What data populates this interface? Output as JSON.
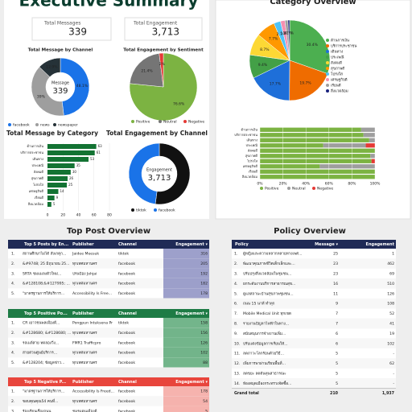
{
  "header": {
    "title": "Executive Summary"
  },
  "sections": [
    "Top Post Overview",
    "Policy Overview"
  ],
  "cards": [
    {
      "label": "Total Messages",
      "value": "339"
    },
    {
      "label": "Total Engagement",
      "value": "3,713"
    }
  ],
  "chart_data": [
    {
      "type": "donut",
      "title": "Total Message by Channel",
      "center_label": "Message",
      "center_value": "339",
      "categories": [
        "facebook",
        "news",
        "newspaper"
      ],
      "values": [
        48.1,
        39,
        12.9
      ],
      "value_labels": [
        "48.1%",
        "39%",
        "12.9%"
      ],
      "colors": [
        "#1a73e8",
        "#9e9e9e",
        "#263238"
      ]
    },
    {
      "type": "pie",
      "title": "Total Engagement by Sentiment",
      "categories": [
        "Positive",
        "Neutral",
        "Negative"
      ],
      "values": [
        76.6,
        21.4,
        2
      ],
      "value_labels": [
        "76.6%",
        "21.4%",
        "2%"
      ],
      "colors": [
        "#7cb342",
        "#757575",
        "#e53935"
      ]
    },
    {
      "type": "hbar",
      "title": "Total Message by Category",
      "categories": [
        "ด้านการเงิน",
        "บริการประชาชน",
        "เดินทาง",
        "ประเพณี",
        "สังคมดี",
        "สุขภาพดี",
        "โปร่งใส",
        "เศรษฐกิจดี",
        "เรียนดี",
        "สิ่งแวดล้อม"
      ],
      "values": [
        63,
        61,
        53,
        35,
        30,
        26,
        25,
        14,
        9,
        5
      ],
      "color": "#137333",
      "xlim": [
        0,
        80
      ],
      "xticks": [
        0,
        20,
        40,
        60,
        80
      ]
    },
    {
      "type": "donut",
      "title": "Total Engagement by Channel",
      "center_label": "Engagement",
      "center_value": "3,713",
      "categories": [
        "tiktok",
        "facebook"
      ],
      "values": [
        52.1,
        47.9
      ],
      "colors": [
        "#111111",
        "#1a73e8"
      ]
    },
    {
      "type": "pie",
      "title": "Category Overview",
      "categories": [
        "ด้านการเงิน",
        "บริการประชาชน",
        "เดินทาง",
        "ประเพณี",
        "สังคมดี",
        "สุขภาพดี",
        "โปร่งใส",
        "เศรษฐกิจดี",
        "เรียนดี",
        "สิ่งแวดล้อม"
      ],
      "values": [
        30.4,
        19.7,
        17.7,
        9.4,
        8.7,
        7.7,
        2.7,
        1.8,
        1.2,
        0.7
      ],
      "value_labels": [
        "30.4%",
        "19.7%",
        "17.7%",
        "9.4%",
        "8.7%",
        "7.7%",
        "2.7%",
        "1.8%",
        "1.2%",
        "0.7%"
      ],
      "colors": [
        "#4caf50",
        "#ef6c00",
        "#1e6fd9",
        "#43a047",
        "#fdd835",
        "#ff9800",
        "#4fc3f7",
        "#f48fb1",
        "#9e9e9e",
        "#1a237e"
      ],
      "legend": "right"
    },
    {
      "type": "stacked_hbar",
      "categories": [
        "ด้านการเงิน",
        "บริการประชาชน",
        "เดินทาง",
        "ประเพณี",
        "สังคมดี",
        "สุขภาพดี",
        "โปร่งใส",
        "เศรษฐกิจดี",
        "เรียนดี",
        "สิ่งแวดล้อม"
      ],
      "series": [
        {
          "name": "Positive",
          "color": "#7cb342",
          "values": [
            88,
            90,
            95,
            55,
            100,
            96,
            97,
            52,
            100,
            100
          ]
        },
        {
          "name": "Neutral",
          "color": "#9e9e9e",
          "values": [
            12,
            10,
            5,
            37,
            0,
            4,
            0,
            48,
            0,
            0
          ]
        },
        {
          "name": "Negative",
          "color": "#e53935",
          "values": [
            0,
            0,
            0,
            8,
            0,
            0,
            3,
            0,
            0,
            0
          ]
        }
      ],
      "xlim": [
        0,
        100
      ],
      "xticks": [
        {
          "value": 0,
          "label": "0%"
        },
        {
          "value": 20,
          "label": "20%"
        },
        {
          "value": 40,
          "label": "40%"
        },
        {
          "value": 60,
          "label": "60%"
        },
        {
          "value": 80,
          "label": "80%"
        },
        {
          "value": 100,
          "label": "100%"
        }
      ],
      "grid": true
    }
  ],
  "tables": [
    {
      "header_color": "#1f2a56",
      "cell_color": "#8c8fc2",
      "header": [
        "Top 5 Posts by En...",
        "Publisher",
        "Channel",
        "Engagement ▾"
      ],
      "rows": [
        [
          "1.",
          "สถานศึกษาไม่ได้ สังเกตุก...",
          "Jaidee Meesuk",
          "tiktok",
          "316"
        ],
        [
          "2.",
          "&#9748; 25 มิถุนายน 25...",
          "ทุกเทศมหานคร",
          "facebook",
          "205"
        ],
        [
          "3.",
          "SRTA ชมแมลงตัวใหม่...",
          "ปรนป้อง Johjai",
          "facebook",
          "192"
        ],
        [
          "4.",
          "&#128108;&#127995; ...",
          "ทุกเทศมหานคร",
          "facebook",
          "182"
        ],
        [
          "5.",
          "\"มาตรฐานการให้บริการ...",
          "Accessibility Is Free...",
          "facebook",
          "178"
        ]
      ]
    },
    {
      "header_color": "#1e7b45",
      "cell_color": "#5aa877",
      "header": [
        "Top 5 Positive Po...",
        "Publisher",
        "Channel",
        "Engagement ▾"
      ],
      "rows": [
        [
          "1.",
          "CR เยาวชนพลเมืองดี...",
          "Pongpun Intuksena Pr",
          "tiktok",
          "158"
        ],
        [
          "2.",
          "&#128680; &#128680; ...",
          "ทุกเทศมหานคร",
          "facebook",
          "156"
        ],
        [
          "3.",
          "รถเมล์สาย ทดลองวิ่ง...",
          "FMR1 Trafficpro",
          "facebook",
          "126"
        ],
        [
          "4.",
          "สายด่วนศูนย์บริการ...",
          "ทุกเทศมหานคร",
          "facebook",
          "102"
        ],
        [
          "5.",
          "&#128204; ข้อมูลข่าว...",
          "ทุกเทศมหานคร",
          "facebook",
          "88"
        ]
      ]
    },
    {
      "header_color": "#e8453c",
      "cell_color": "#f4a6a0",
      "header": [
        "Top 5 Negative P...",
        "Publisher",
        "Channel",
        "Engagement ▾"
      ],
      "rows": [
        [
          "1.",
          "\"มาตรฐานการให้บริการ...",
          "Accessibility Is Freed...",
          "facebook",
          "178"
        ],
        [
          "2.",
          "ขอบคุณคุณ54 คนที่...",
          "ทุกเทศมหานคร",
          "facebook",
          "54"
        ],
        [
          "3.",
          "ร้องเรียนเรื่องถนน...",
          "ชมรมคนเมืองดี",
          "facebook",
          "5"
        ]
      ]
    },
    {
      "header_color": "#1f2a56",
      "header": [
        "Policy",
        "Message ▾",
        "Engagement"
      ],
      "rows": [
        [
          "1.",
          "ผู้หญิงและความหลากหลายทางเพศ...",
          "25",
          "1"
        ],
        [
          "2.",
          "พัฒนาคุณภาพชีวิตเด็กเล็กและ...",
          "23",
          "462"
        ],
        [
          "3.",
          "ปรับปรุงสิ่งแวดล้อมในชุมชน...",
          "23",
          "69"
        ],
        [
          "4.",
          "ยกระดับงานบริการสาธารณสุข...",
          "16",
          "510"
        ],
        [
          "5.",
          "ดูแลสถานะบ้านสุขภาพชุมชน...",
          "11",
          "126"
        ],
        [
          "6.",
          "ถนน 15 นาที ทำทุก",
          "9",
          "108"
        ],
        [
          "7.",
          "Mobile Medical Unit ทุกเขต",
          "7",
          "52"
        ],
        [
          "8.",
          "รายงานปัญหาไฟฟ้าในทาง...",
          "7",
          "41"
        ],
        [
          "9.",
          "สนับสนุนการจ้างงานเพิ่ม...",
          "6",
          "19"
        ],
        [
          "10.",
          "ปรับแต่งข้อมูลการเรียนให้...",
          "6",
          "102"
        ],
        [
          "11.",
          "ลดภาวะโลกร้อนด้วยวิธี...",
          "5",
          "-"
        ],
        [
          "12.",
          "เพิ่มการพาผ่านเรียนพื้นที่...",
          "5",
          "62"
        ],
        [
          "13.",
          "ลดขยะ ลดต้นทุนสาธารณะ",
          "5",
          "-"
        ],
        [
          "14.",
          "ห้องสมุดเมืองกระทรวงจัดซื้อ...",
          "5",
          "-"
        ]
      ],
      "footer": [
        "Grand total",
        "210",
        "1,937"
      ]
    }
  ]
}
